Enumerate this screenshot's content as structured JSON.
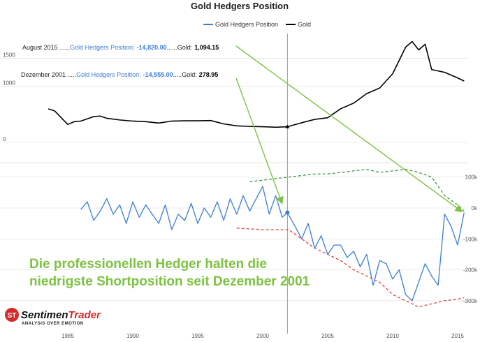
{
  "chart_data": {
    "type": "line",
    "title": "Gold Hedgers Position",
    "legend": [
      {
        "name": "Gold Hedgers Position",
        "color": "#3b7dd8"
      },
      {
        "name": "Gold",
        "color": "#000000"
      }
    ],
    "x_ticks": [
      "1985",
      "1990",
      "1995",
      "2000",
      "2005",
      "2010",
      "2015"
    ],
    "gold_axis": {
      "ticks": [
        "0",
        "1000",
        "1500"
      ],
      "ylim": [
        0,
        1900
      ]
    },
    "hedgers_axis": {
      "ticks": [
        "100k",
        "0k",
        "-100k",
        "-200k",
        "-300k"
      ],
      "ylim": [
        -350000,
        130000
      ]
    },
    "series": [
      {
        "name": "Gold",
        "color": "#000000",
        "x": [
          1983.5,
          1984,
          1985,
          1985.5,
          1986,
          1987,
          1987.5,
          1988,
          1989,
          1990,
          1991,
          1992,
          1993,
          1994,
          1995,
          1996,
          1997,
          1998,
          1999,
          2000,
          2001,
          2001.9,
          2003,
          2004,
          2005,
          2006,
          2007,
          2008,
          2009,
          2010,
          2011,
          2011.5,
          2012,
          2012.5,
          2013,
          2014,
          2015,
          2015.5
        ],
        "y": [
          600,
          560,
          320,
          370,
          380,
          460,
          470,
          430,
          400,
          380,
          370,
          345,
          380,
          385,
          385,
          390,
          330,
          295,
          285,
          280,
          270,
          278.95,
          350,
          410,
          440,
          600,
          700,
          870,
          970,
          1225,
          1700,
          1800,
          1650,
          1750,
          1300,
          1250,
          1150,
          1094.15
        ]
      },
      {
        "name": "Gold Hedgers Position",
        "color": "#3b7dd8",
        "x": [
          1986,
          1986.5,
          1987,
          1987.5,
          1988,
          1988.5,
          1989,
          1989.5,
          1990,
          1990.5,
          1991,
          1991.5,
          1992,
          1992.5,
          1993,
          1993.5,
          1994,
          1994.5,
          1995,
          1995.5,
          1996,
          1996.5,
          1997,
          1997.5,
          1998,
          1998.5,
          1999,
          1999.5,
          2000,
          2000.5,
          2001,
          2001.5,
          2001.9,
          2002.5,
          2003,
          2003.5,
          2004,
          2004.5,
          2005,
          2005.5,
          2006,
          2006.5,
          2007,
          2007.5,
          2008,
          2008.5,
          2009,
          2009.5,
          2010,
          2010.5,
          2011,
          2011.5,
          2012,
          2012.5,
          2013,
          2013.5,
          2014,
          2014.5,
          2015,
          2015.5
        ],
        "y": [
          -5000,
          20000,
          -40000,
          -10000,
          30000,
          -20000,
          10000,
          -50000,
          20000,
          -30000,
          10000,
          -20000,
          -50000,
          10000,
          -70000,
          -20000,
          -40000,
          15000,
          -50000,
          0,
          -30000,
          20000,
          -40000,
          30000,
          -20000,
          40000,
          -10000,
          30000,
          70000,
          -20000,
          40000,
          -30000,
          -14555,
          -60000,
          -100000,
          -50000,
          -130000,
          -90000,
          -150000,
          -120000,
          -120000,
          -160000,
          -140000,
          -190000,
          -150000,
          -250000,
          -170000,
          -180000,
          -230000,
          -200000,
          -280000,
          -300000,
          -240000,
          -180000,
          -220000,
          -250000,
          -20000,
          -60000,
          -120000,
          -14820
        ]
      }
    ],
    "reference_lines": [
      {
        "style": "dashed",
        "color": "#3a9a3a",
        "x": [
          1999,
          2000,
          2001,
          2002,
          2003,
          2004,
          2005,
          2006,
          2007,
          2008,
          2009,
          2010,
          2011,
          2012,
          2013,
          2014,
          2015,
          2015.5
        ],
        "y": [
          85000,
          90000,
          95000,
          100000,
          105000,
          110000,
          110000,
          115000,
          120000,
          125000,
          115000,
          120000,
          125000,
          115000,
          100000,
          40000,
          10000,
          -10000
        ]
      },
      {
        "style": "dashed",
        "color": "#e0403a",
        "x": [
          1998,
          2000,
          2002,
          2003,
          2004,
          2005,
          2006,
          2007,
          2008,
          2009,
          2010,
          2011,
          2012,
          2013,
          2014,
          2015,
          2015.5
        ],
        "y": [
          -65000,
          -70000,
          -70000,
          -100000,
          -130000,
          -150000,
          -170000,
          -200000,
          -220000,
          -240000,
          -280000,
          -300000,
          -320000,
          -310000,
          -300000,
          -295000,
          -290000
        ]
      }
    ],
    "annotations": [
      {
        "date": "August 2015",
        "hedgers_label": "Gold Hedgers Position:",
        "hedgers_value": "-14,820.00",
        "gold_label": "Gold:",
        "gold_value": "1,094.15",
        "gold_at_xy": [
          2015.5,
          1094.15
        ],
        "hedgers_at_xy": [
          2015.5,
          -14820
        ]
      },
      {
        "date": "Dezember 2001",
        "hedgers_label": "Gold Hedgers Position:",
        "hedgers_value": "-14,555.00",
        "gold_label": "Gold:",
        "gold_value": "278.95",
        "gold_at_xy": [
          2001.9,
          278.95
        ],
        "hedgers_at_xy": [
          2001.9,
          -14555
        ]
      }
    ],
    "headline": [
      "Die professionellen Hedger halten die",
      "niedrigste Shortposition seit Dezember 2001"
    ],
    "grid": true
  },
  "logo": {
    "name_a": "Sentimen",
    "name_b": "Trader",
    "tagline": "ANALYSIS OVER EMOTION"
  }
}
